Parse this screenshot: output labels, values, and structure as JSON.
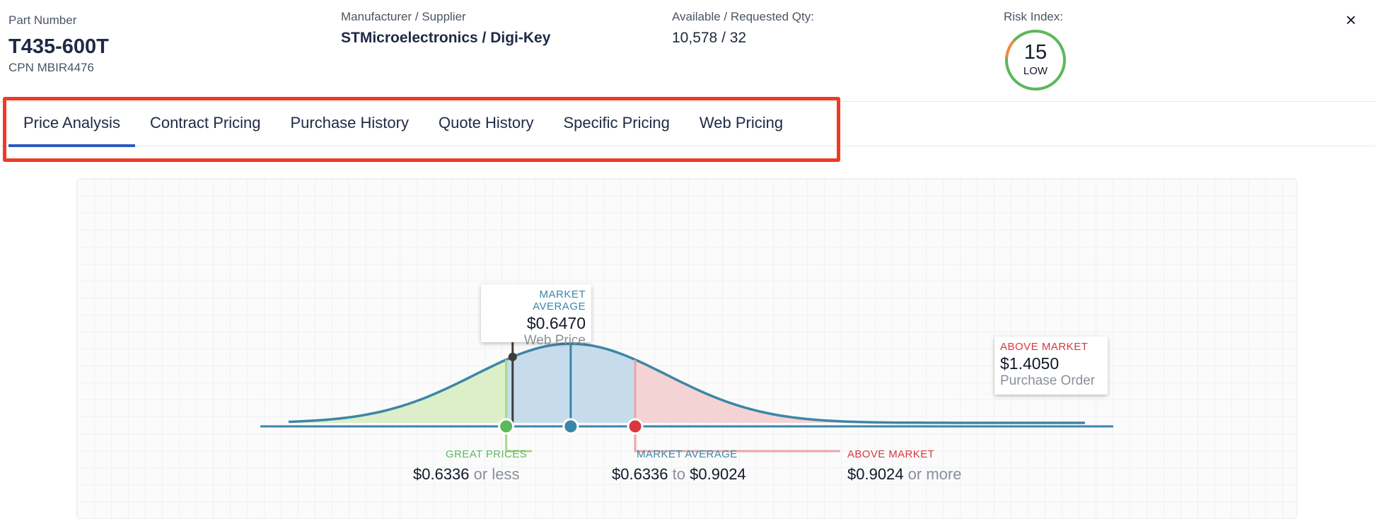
{
  "header": {
    "part_number_label": "Part Number",
    "part_number": "T435-600T",
    "cpn": "CPN MBIR4476",
    "manufacturer_label": "Manufacturer / Supplier",
    "manufacturer": "STMicroelectronics / Digi-Key",
    "qty_label": "Available / Requested Qty:",
    "qty": "10,578 / 32",
    "risk_label": "Risk Index:",
    "risk_value": "15",
    "risk_level": "LOW",
    "risk_fraction": 0.15,
    "close_icon": "×"
  },
  "tabs": [
    {
      "label": "Price Analysis",
      "active": true
    },
    {
      "label": "Contract Pricing",
      "active": false
    },
    {
      "label": "Purchase History",
      "active": false
    },
    {
      "label": "Quote History",
      "active": false
    },
    {
      "label": "Specific Pricing",
      "active": false
    },
    {
      "label": "Web Pricing",
      "active": false
    }
  ],
  "colors": {
    "great": "#5cb85c",
    "average": "#3a86a8",
    "above": "#d9363e",
    "curve": "#3d86a6",
    "risk_low": "#5cb85c",
    "risk_high": "#f0883e",
    "highlight": "#ef3b24"
  },
  "chart_data": {
    "type": "area",
    "distribution": "normal",
    "x_min": 0.18,
    "x_max": 1.84,
    "mean": 0.768,
    "sd": 0.2,
    "zones": [
      {
        "name": "GREAT PRICES",
        "from": 0.18,
        "to": 0.6336
      },
      {
        "name": "MARKET AVERAGE",
        "from": 0.6336,
        "to": 0.9024
      },
      {
        "name": "ABOVE MARKET",
        "from": 0.9024,
        "to": 1.84
      }
    ],
    "markers": [
      {
        "label": "MARKET AVERAGE",
        "price": "$0.6470",
        "source": "Web Price",
        "value": 0.647
      },
      {
        "label": "ABOVE MARKET",
        "price": "$1.4050",
        "source": "Purchase Order",
        "value": 1.405
      }
    ],
    "labels": {
      "great_title": "GREAT PRICES",
      "great_value": "$0.6336",
      "great_suffix": "or less",
      "avg_title": "MARKET AVERAGE",
      "avg_low": "$0.6336",
      "avg_to": "to",
      "avg_high": "$0.9024",
      "above_title": "ABOVE MARKET",
      "above_value": "$0.9024",
      "above_suffix": "or more"
    }
  }
}
